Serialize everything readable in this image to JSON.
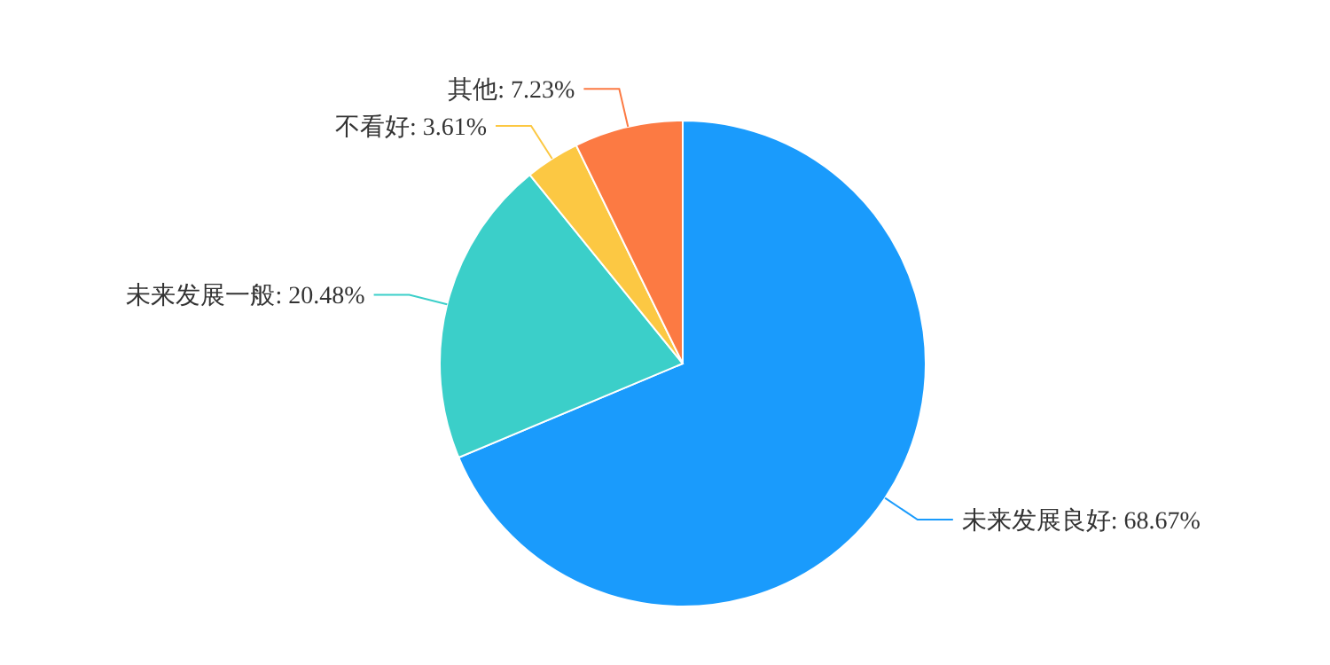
{
  "chart_data": {
    "type": "pie",
    "categories": [
      "未来发展良好",
      "未来发展一般",
      "不看好",
      "其他"
    ],
    "values": [
      68.67,
      20.48,
      3.61,
      7.23
    ],
    "value_labels": [
      "68.67%",
      "20.48%",
      "3.61%",
      "7.23%"
    ],
    "colors": [
      "#1a9bfc",
      "#3bcfc9",
      "#fcc843",
      "#fc7a43"
    ]
  }
}
